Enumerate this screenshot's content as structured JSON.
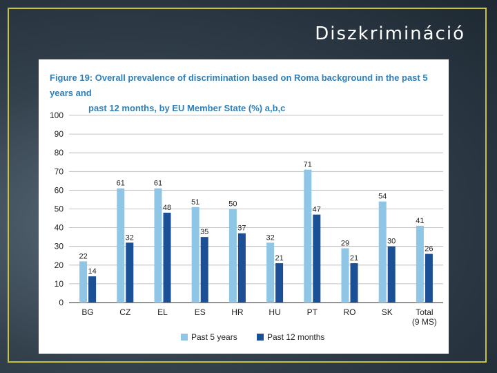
{
  "slide": {
    "title": "Diszkrimináció"
  },
  "figure": {
    "title_line1": "Figure 19:  Overall prevalence of discrimination based on Roma background in the past 5 years and",
    "title_line2": "past 12 months, by EU Member State (%) a,b,c"
  },
  "colors": {
    "past5": "#8fc6e6",
    "past12": "#1b4f96",
    "grid": "#b0b0b0",
    "label": "#222222"
  },
  "chart_data": {
    "type": "bar",
    "title": "Overall prevalence of discrimination based on Roma background in the past 5 years and past 12 months, by EU Member State (%)",
    "categories": [
      "BG",
      "CZ",
      "EL",
      "ES",
      "HR",
      "HU",
      "PT",
      "RO",
      "SK",
      "Total"
    ],
    "category_sublabels": [
      "",
      "",
      "",
      "",
      "",
      "",
      "",
      "",
      "",
      "(9 MS)"
    ],
    "series": [
      {
        "name": "Past 5 years",
        "values": [
          22,
          61,
          61,
          51,
          50,
          32,
          71,
          29,
          54,
          41
        ]
      },
      {
        "name": "Past 12 months",
        "values": [
          14,
          32,
          48,
          35,
          37,
          21,
          47,
          21,
          30,
          26
        ]
      }
    ],
    "ylim": [
      0,
      100
    ],
    "yticks": [
      0,
      10,
      20,
      30,
      40,
      50,
      60,
      70,
      80,
      90,
      100
    ],
    "grid": true,
    "legend_position": "bottom-center",
    "xlabel": "",
    "ylabel": ""
  }
}
